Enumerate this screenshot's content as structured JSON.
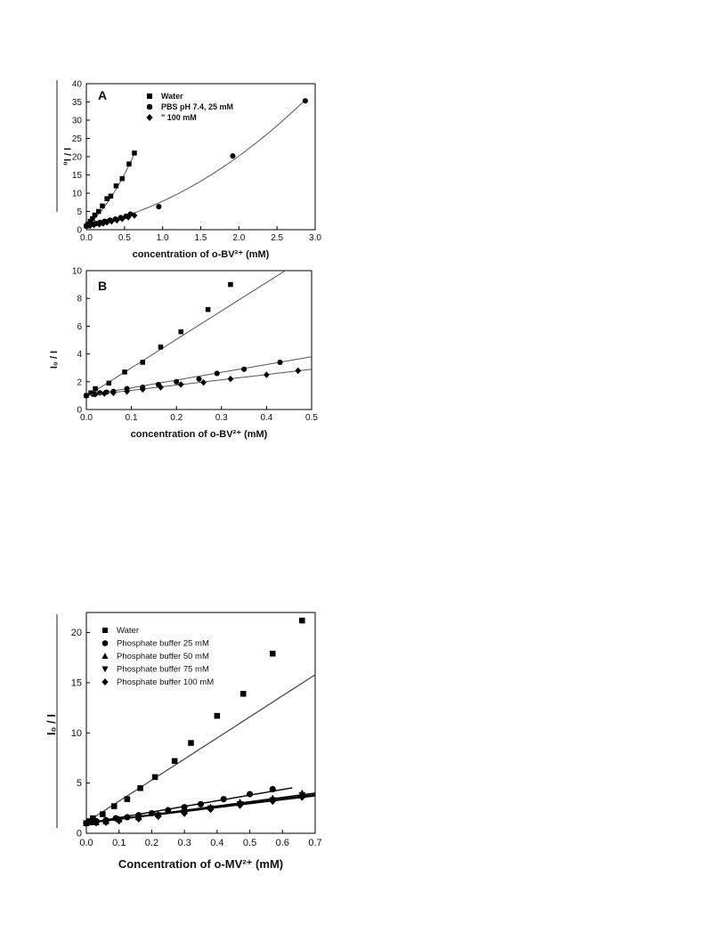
{
  "chart_data": [
    {
      "type": "scatter",
      "panel_label": "A",
      "xlabel": "concentration of o-BV²⁺ (mM)",
      "ylabel": "I / I₀",
      "xlim": [
        0,
        3.0
      ],
      "ylim": [
        0,
        40
      ],
      "xticks": [
        "0.0",
        "0.5",
        "1.0",
        "1.5",
        "2.0",
        "2.5",
        "3.0"
      ],
      "yticks": [
        "0",
        "5",
        "10",
        "15",
        "20",
        "25",
        "30",
        "35",
        "40"
      ],
      "legend_position": "top-center",
      "grid": false,
      "series": [
        {
          "name": "Water",
          "marker": "square",
          "x": [
            0.0,
            0.02,
            0.05,
            0.08,
            0.11,
            0.16,
            0.21,
            0.27,
            0.32,
            0.39,
            0.47,
            0.56,
            0.63
          ],
          "y": [
            1.0,
            1.5,
            2.3,
            3.0,
            4.0,
            5.0,
            6.5,
            8.5,
            9.2,
            12.0,
            14.0,
            18.0,
            21.0
          ],
          "fit": {
            "kind": "poly",
            "coef": [
              1.0,
              17.0,
              23.0
            ],
            "x_range": [
              0,
              0.63
            ]
          }
        },
        {
          "name": "PBS pH 7.4, 25 mM",
          "marker": "circle",
          "x": [
            0.0,
            0.03,
            0.08,
            0.13,
            0.18,
            0.24,
            0.31,
            0.38,
            0.45,
            0.52,
            0.58,
            0.95,
            1.92,
            2.87
          ],
          "y": [
            1.0,
            1.2,
            1.5,
            1.7,
            2.0,
            2.3,
            2.6,
            2.9,
            3.3,
            3.7,
            4.3,
            6.3,
            20.2,
            35.3
          ],
          "fit": {
            "kind": "poly",
            "coef": [
              1.0,
              4.0,
              2.8
            ],
            "x_range": [
              0,
              2.87
            ]
          }
        },
        {
          "name": "\"                100 mM",
          "marker": "diamond",
          "x": [
            0.0,
            0.05,
            0.1,
            0.17,
            0.22,
            0.27,
            0.33,
            0.4,
            0.47,
            0.55,
            0.63
          ],
          "y": [
            1.0,
            1.1,
            1.3,
            1.5,
            1.7,
            2.0,
            2.3,
            2.6,
            3.0,
            3.4,
            3.9
          ]
        }
      ]
    },
    {
      "type": "scatter",
      "panel_label": "B",
      "xlabel": "concentration of o-BV²⁺ (mM)",
      "ylabel": "I₀ / I",
      "xlim": [
        0,
        0.5
      ],
      "ylim": [
        0,
        10
      ],
      "xticks": [
        "0.0",
        "0.1",
        "0.2",
        "0.3",
        "0.4",
        "0.5"
      ],
      "yticks": [
        "0",
        "2",
        "4",
        "6",
        "8",
        "10"
      ],
      "grid": false,
      "series": [
        {
          "marker": "square",
          "x": [
            0.0,
            0.01,
            0.02,
            0.05,
            0.085,
            0.125,
            0.165,
            0.21,
            0.27,
            0.32
          ],
          "y": [
            1.0,
            1.2,
            1.5,
            1.9,
            2.7,
            3.4,
            4.5,
            5.6,
            7.2,
            9.0
          ],
          "fit": {
            "kind": "linear",
            "slope": 20.5,
            "intercept": 0.95,
            "x_range": [
              0,
              0.5
            ]
          }
        },
        {
          "marker": "circle",
          "x": [
            0.0,
            0.015,
            0.03,
            0.045,
            0.06,
            0.09,
            0.125,
            0.16,
            0.2,
            0.25,
            0.29,
            0.35,
            0.43
          ],
          "y": [
            1.0,
            1.1,
            1.2,
            1.25,
            1.3,
            1.5,
            1.6,
            1.8,
            2.0,
            2.2,
            2.6,
            2.9,
            3.4
          ],
          "fit": {
            "kind": "linear",
            "slope": 5.6,
            "intercept": 1.0,
            "x_range": [
              0,
              0.5
            ]
          }
        },
        {
          "marker": "diamond",
          "x": [
            0.0,
            0.02,
            0.04,
            0.06,
            0.09,
            0.125,
            0.165,
            0.21,
            0.26,
            0.32,
            0.4,
            0.47
          ],
          "y": [
            1.0,
            1.1,
            1.15,
            1.2,
            1.3,
            1.45,
            1.6,
            1.8,
            1.95,
            2.2,
            2.5,
            2.8
          ],
          "fit": {
            "kind": "linear",
            "slope": 3.8,
            "intercept": 1.0,
            "x_range": [
              0,
              0.5
            ]
          }
        }
      ]
    },
    {
      "type": "scatter",
      "xlabel": "Concentration of o-MV²⁺ (mM)",
      "ylabel": "I₀ / I",
      "xlim": [
        0,
        0.7
      ],
      "ylim": [
        0,
        22
      ],
      "xticks": [
        "0.0",
        "0.1",
        "0.2",
        "0.3",
        "0.4",
        "0.5",
        "0.6",
        "0.7"
      ],
      "yticks": [
        "0",
        "5",
        "10",
        "15",
        "20"
      ],
      "legend_position": "top-left",
      "grid": false,
      "series": [
        {
          "name": "Water",
          "marker": "square",
          "x": [
            0.0,
            0.01,
            0.02,
            0.05,
            0.085,
            0.125,
            0.165,
            0.21,
            0.27,
            0.32,
            0.4,
            0.48,
            0.57,
            0.66
          ],
          "y": [
            1.0,
            1.2,
            1.5,
            1.9,
            2.7,
            3.4,
            4.5,
            5.6,
            7.2,
            9.0,
            11.7,
            13.9,
            17.9,
            21.2
          ],
          "fit": {
            "kind": "linear",
            "slope": 21.0,
            "intercept": 1.1,
            "x_range": [
              0,
              0.7
            ]
          }
        },
        {
          "name": "Phosphate buffer 25 mM",
          "marker": "circle",
          "x": [
            0.0,
            0.015,
            0.03,
            0.06,
            0.09,
            0.125,
            0.16,
            0.2,
            0.25,
            0.3,
            0.35,
            0.42,
            0.5,
            0.57
          ],
          "y": [
            1.0,
            1.1,
            1.2,
            1.3,
            1.5,
            1.6,
            1.8,
            2.0,
            2.3,
            2.6,
            2.9,
            3.4,
            3.9,
            4.4
          ],
          "fit": {
            "kind": "linear",
            "slope": 5.6,
            "intercept": 1.0,
            "x_range": [
              0,
              0.63
            ]
          }
        },
        {
          "name": "Phosphate buffer 50 mM",
          "marker": "triangle-up",
          "x": [
            0.0,
            0.03,
            0.06,
            0.1,
            0.16,
            0.22,
            0.3,
            0.38,
            0.47,
            0.57,
            0.66
          ],
          "y": [
            1.0,
            1.1,
            1.2,
            1.4,
            1.6,
            1.9,
            2.3,
            2.6,
            3.1,
            3.5,
            4.0
          ],
          "fit": {
            "kind": "linear",
            "slope": 4.3,
            "intercept": 1.0,
            "x_range": [
              0,
              0.7
            ]
          }
        },
        {
          "name": "Phosphate buffer 75 mM",
          "marker": "triangle-down",
          "x": [
            0.0,
            0.03,
            0.06,
            0.1,
            0.16,
            0.22,
            0.3,
            0.38,
            0.47,
            0.57,
            0.66
          ],
          "y": [
            1.0,
            1.1,
            1.15,
            1.3,
            1.5,
            1.8,
            2.1,
            2.5,
            2.9,
            3.3,
            3.8
          ],
          "fit": {
            "kind": "linear",
            "slope": 4.1,
            "intercept": 1.0,
            "x_range": [
              0,
              0.7
            ]
          }
        },
        {
          "name": "Phosphate buffer 100 mM",
          "marker": "diamond",
          "x": [
            0.0,
            0.03,
            0.06,
            0.1,
            0.16,
            0.22,
            0.3,
            0.38,
            0.47,
            0.57,
            0.66
          ],
          "y": [
            1.0,
            1.05,
            1.1,
            1.25,
            1.45,
            1.7,
            2.0,
            2.4,
            2.8,
            3.2,
            3.6
          ],
          "fit": {
            "kind": "linear",
            "slope": 3.9,
            "intercept": 1.0,
            "x_range": [
              0,
              0.7
            ]
          }
        }
      ]
    }
  ]
}
